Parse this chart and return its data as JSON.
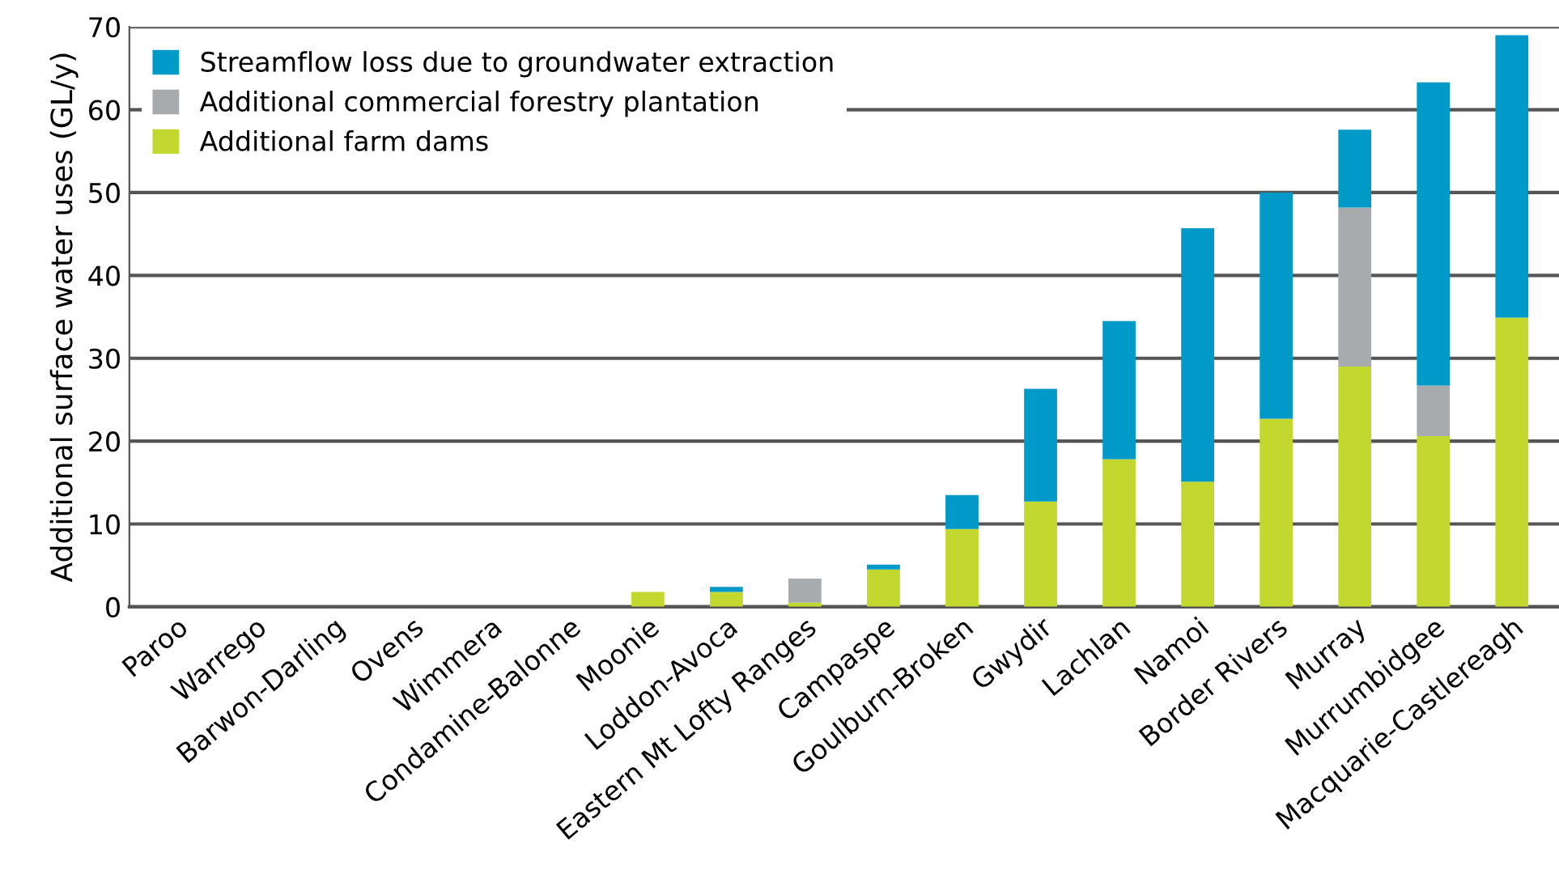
{
  "chart_data": {
    "type": "bar",
    "stacked": true,
    "ylabel": "Additional surface water uses (GL/y)",
    "categories": [
      "Paroo",
      "Warrego",
      "Barwon-Darling",
      "Ovens",
      "Wimmera",
      "Condamine-Balonne",
      "Moonie",
      "Loddon-Avoca",
      "Eastern Mt Lofty Ranges",
      "Campaspe",
      "Goulburn-Broken",
      "Gwydir",
      "Lachlan",
      "Namoi",
      "Border Rivers",
      "Murray",
      "Murrumbidgee",
      "Macquarie-Castlereagh"
    ],
    "series": [
      {
        "name": "Additional farm dams",
        "color": "#c2d82e",
        "values": [
          0,
          0,
          0,
          0,
          0,
          0,
          1.8,
          1.8,
          0.5,
          4.5,
          9.4,
          12.7,
          17.8,
          15.1,
          22.7,
          29.0,
          20.6,
          34.9
        ]
      },
      {
        "name": "Additional commercial forestry plantation",
        "color": "#a8abae",
        "values": [
          0,
          0,
          0,
          0,
          0,
          0,
          0,
          0,
          2.9,
          0,
          0,
          0,
          0,
          0,
          0,
          19.2,
          6.1,
          0
        ]
      },
      {
        "name": "Streamflow loss due to groundwater extraction",
        "color": "#009ac9",
        "values": [
          0,
          0,
          0,
          0,
          0,
          0,
          0,
          0.6,
          0,
          0.6,
          4.1,
          13.6,
          16.7,
          30.6,
          27.3,
          9.4,
          36.6,
          34.1
        ]
      }
    ],
    "ylim": [
      0,
      70
    ],
    "yticks": [
      0,
      10,
      20,
      30,
      40,
      50,
      60,
      70
    ],
    "grid": "y",
    "legend": "top left"
  }
}
